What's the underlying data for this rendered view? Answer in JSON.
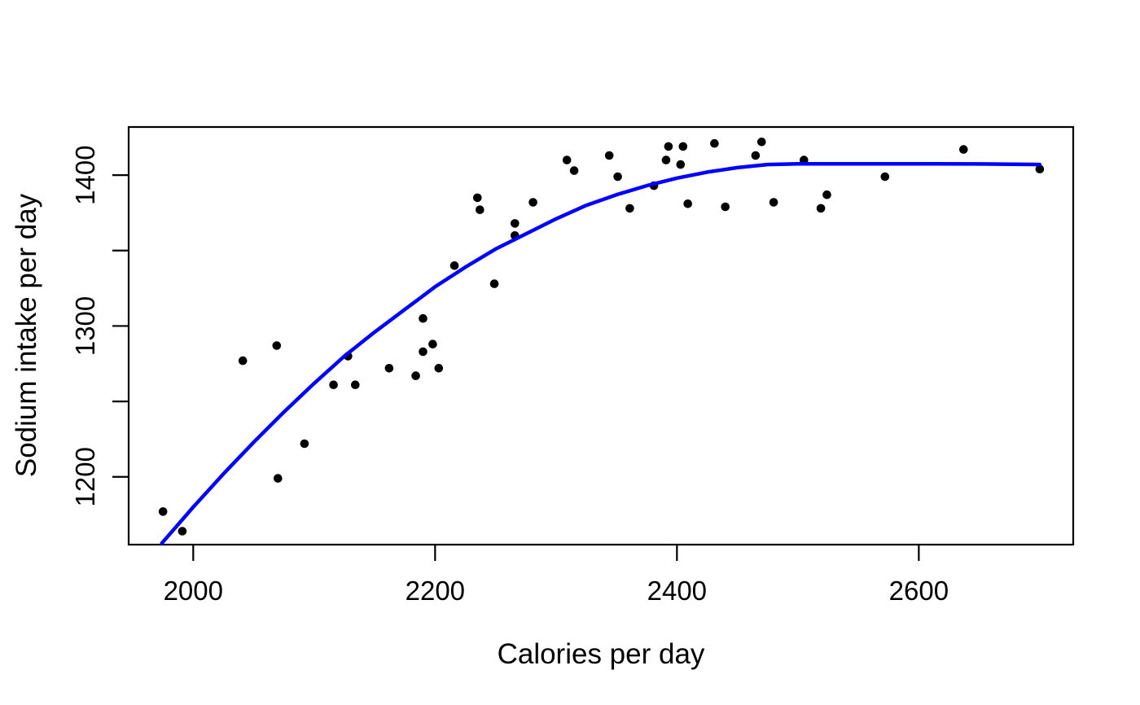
{
  "figure": {
    "background": "#ffffff"
  },
  "chart_data": {
    "type": "scatter",
    "title": "",
    "xlabel": "Calories per day",
    "ylabel": "Sodium intake per day",
    "x_ticks": [
      2000,
      2200,
      2400,
      2600
    ],
    "y_ticks": [
      1200,
      1250,
      1300,
      1350,
      1400
    ],
    "y_tick_labels_shown": [
      1200,
      1300,
      1400
    ],
    "xlim": [
      1946.6,
      2727.7
    ],
    "ylim": [
      1155.1,
      1431.9
    ],
    "grid": false,
    "legend": null,
    "point_color": "#000000",
    "curve_color": "#0000ff",
    "axis_color": "#000000",
    "points": [
      [
        1975,
        1177
      ],
      [
        1991,
        1164
      ],
      [
        2041,
        1277
      ],
      [
        2069,
        1287
      ],
      [
        2070,
        1199
      ],
      [
        2092,
        1222
      ],
      [
        2116,
        1261
      ],
      [
        2128,
        1280
      ],
      [
        2134,
        1261
      ],
      [
        2162,
        1272
      ],
      [
        2184,
        1267
      ],
      [
        2190,
        1305
      ],
      [
        2190,
        1283
      ],
      [
        2198,
        1288
      ],
      [
        2203,
        1272
      ],
      [
        2216,
        1340
      ],
      [
        2235,
        1385
      ],
      [
        2237,
        1377
      ],
      [
        2249,
        1328
      ],
      [
        2266,
        1368
      ],
      [
        2266,
        1360
      ],
      [
        2281,
        1382
      ],
      [
        2309,
        1410
      ],
      [
        2315,
        1403
      ],
      [
        2344,
        1413
      ],
      [
        2351,
        1399
      ],
      [
        2361,
        1378
      ],
      [
        2381,
        1393
      ],
      [
        2391,
        1410
      ],
      [
        2393,
        1419
      ],
      [
        2403,
        1407
      ],
      [
        2405,
        1419
      ],
      [
        2409,
        1381
      ],
      [
        2431,
        1421
      ],
      [
        2440,
        1379
      ],
      [
        2465,
        1413
      ],
      [
        2470,
        1422
      ],
      [
        2480,
        1382
      ],
      [
        2505,
        1410
      ],
      [
        2519,
        1378
      ],
      [
        2524,
        1387
      ],
      [
        2572,
        1399
      ],
      [
        2637,
        1417
      ],
      [
        2700,
        1404
      ]
    ],
    "fit_curve": [
      [
        1974,
        1156
      ],
      [
        2000,
        1180
      ],
      [
        2025,
        1202
      ],
      [
        2050,
        1223
      ],
      [
        2075,
        1243
      ],
      [
        2100,
        1262
      ],
      [
        2125,
        1280
      ],
      [
        2150,
        1296
      ],
      [
        2175,
        1311
      ],
      [
        2200,
        1326
      ],
      [
        2225,
        1339
      ],
      [
        2250,
        1351
      ],
      [
        2275,
        1361
      ],
      [
        2300,
        1371
      ],
      [
        2325,
        1380
      ],
      [
        2350,
        1387
      ],
      [
        2375,
        1393
      ],
      [
        2400,
        1398
      ],
      [
        2425,
        1402
      ],
      [
        2450,
        1405
      ],
      [
        2475,
        1407
      ],
      [
        2500,
        1407.5
      ],
      [
        2550,
        1407.5
      ],
      [
        2600,
        1407.5
      ],
      [
        2650,
        1407.4
      ],
      [
        2700,
        1407
      ]
    ]
  }
}
